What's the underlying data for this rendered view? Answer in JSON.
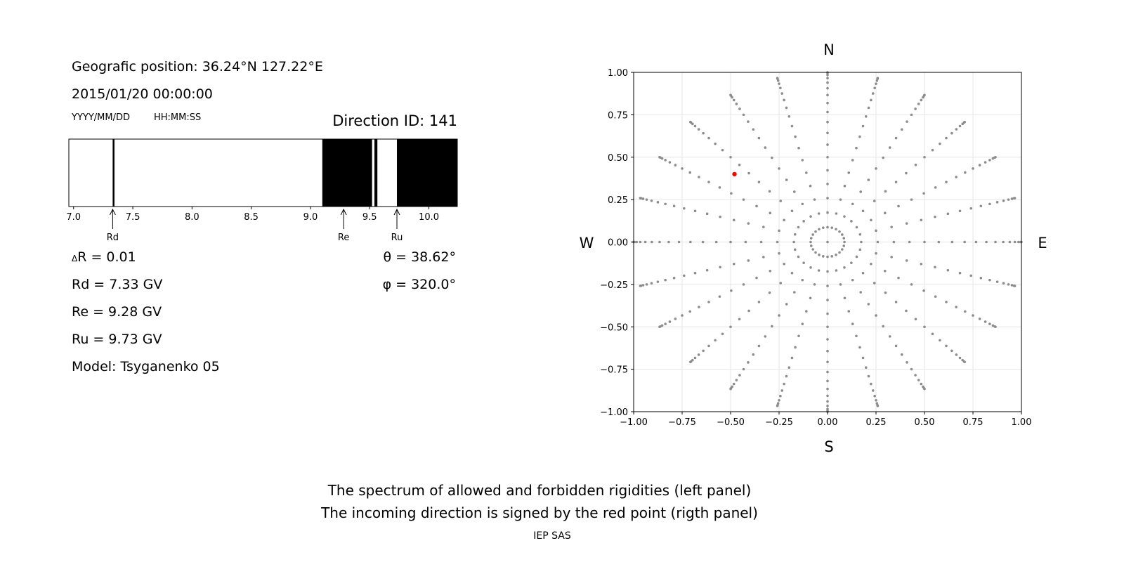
{
  "info": {
    "position": "Geografic position: 36.24°N 127.22°E",
    "datetime": "2015/01/20 00:00:00",
    "date_format": "YYYY/MM/DD",
    "time_format": "HH:MM:SS",
    "direction_id": "Direction ID: 141",
    "delta_r": "R = 0.01",
    "delta_symbol": "Δ",
    "rd": "Rd = 7.33 GV",
    "re": "Re = 9.28 GV",
    "ru": "Ru = 9.73 GV",
    "model": "Model: Tsyganenko 05",
    "theta": "θ = 38.62°",
    "phi": "φ = 320.0°"
  },
  "footer": {
    "line1": "The spectrum of allowed and forbidden rigidities (left panel)",
    "line2": "The incoming direction is signed by the red point (rigth panel)",
    "credit": "IEP SAS"
  },
  "chart_data": [
    {
      "type": "bar",
      "id": "rigidity-spectrum",
      "xlim": [
        6.96,
        10.24
      ],
      "ticks": [
        "7.0",
        "7.5",
        "8.0",
        "8.5",
        "9.0",
        "9.5",
        "10.0"
      ],
      "forbidden_bands": [
        [
          7.33,
          7.345
        ],
        [
          9.1,
          9.52
        ],
        [
          9.54,
          9.565
        ],
        [
          9.73,
          10.24
        ]
      ],
      "markers": [
        {
          "label": "Rd",
          "value": 7.33
        },
        {
          "label": "Re",
          "value": 9.28
        },
        {
          "label": "Ru",
          "value": 9.73
        }
      ],
      "colors": {
        "forbidden": "#000000",
        "allowed": "#ffffff"
      }
    },
    {
      "type": "scatter",
      "id": "direction-map",
      "xlim": [
        -1.0,
        1.0
      ],
      "ylim": [
        -1.0,
        1.0
      ],
      "ticks": [
        "−1.00",
        "−0.75",
        "−0.50",
        "−0.25",
        "0.00",
        "0.25",
        "0.50",
        "0.75",
        "1.00"
      ],
      "grid": true,
      "compass": {
        "n": "N",
        "s": "S",
        "w": "W",
        "e": "E"
      },
      "grid_pattern": {
        "azimuth_step_deg": 15,
        "zenith_from_deg": 5,
        "zenith_to_deg": 90,
        "zenith_step_deg": 5,
        "includes_center": true
      },
      "highlight": {
        "x": -0.48,
        "y": 0.4,
        "color": "#ff0000"
      },
      "point_color": "#8c8c8c"
    }
  ]
}
